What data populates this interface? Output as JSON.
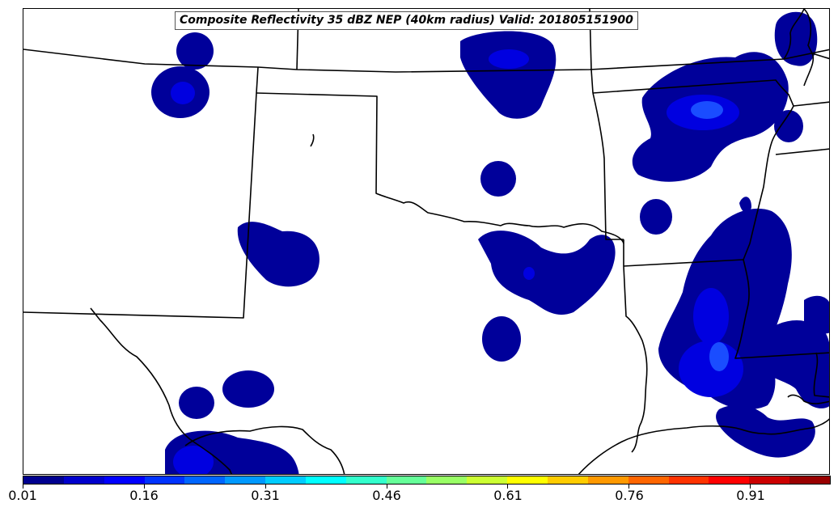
{
  "title": "Composite Reflectivity 35 dBZ NEP (40km radius) Valid: 201805151900",
  "colorbar": {
    "labels": [
      "0.01",
      "0.16",
      "0.31",
      "0.46",
      "0.61",
      "0.76",
      "0.91"
    ],
    "colors": [
      "#00008f",
      "#0000cc",
      "#0000ff",
      "#0033ff",
      "#0066ff",
      "#0099ff",
      "#00ccff",
      "#00ffff",
      "#33ffcc",
      "#66ff99",
      "#99ff66",
      "#ccff33",
      "#ffff00",
      "#ffcc00",
      "#ff9900",
      "#ff6600",
      "#ff3300",
      "#ff0000",
      "#cc0000",
      "#990000"
    ]
  },
  "colors": {
    "probability_low": "#00009a",
    "probability_mid": "#0000e0",
    "probability_high": "#1a4dff",
    "border": "#000000",
    "background": "#ffffff"
  }
}
